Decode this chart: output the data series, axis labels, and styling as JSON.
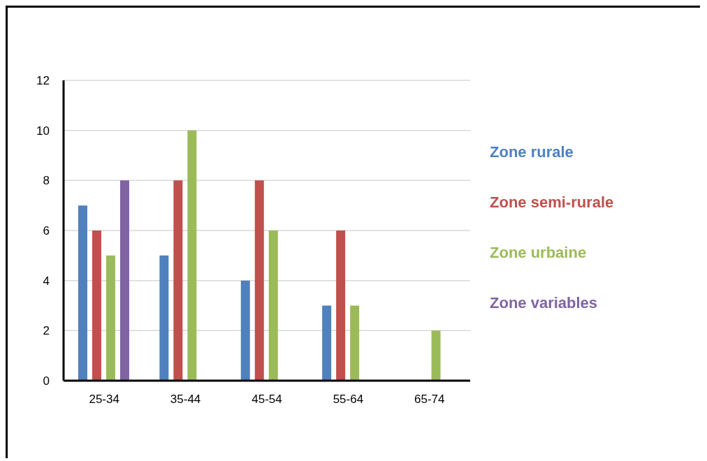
{
  "chart_data": {
    "type": "bar",
    "categories": [
      "25-34",
      "35-44",
      "45-54",
      "55-64",
      "65-74"
    ],
    "series": [
      {
        "name": "Zone rurale",
        "color": "#4f81bd",
        "values": [
          7,
          5,
          4,
          3,
          null
        ]
      },
      {
        "name": "Zone semi-rurale",
        "color": "#c0504d",
        "values": [
          6,
          8,
          8,
          6,
          null
        ]
      },
      {
        "name": "Zone urbaine",
        "color": "#9bbb59",
        "values": [
          5,
          10,
          6,
          3,
          2
        ]
      },
      {
        "name": "Zone variables",
        "color": "#8064a2",
        "values": [
          8,
          null,
          null,
          null,
          null
        ]
      }
    ],
    "ylim": [
      0,
      12
    ],
    "yticks": [
      0,
      2,
      4,
      6,
      8,
      10,
      12
    ],
    "grid": "y",
    "legend": "right"
  }
}
